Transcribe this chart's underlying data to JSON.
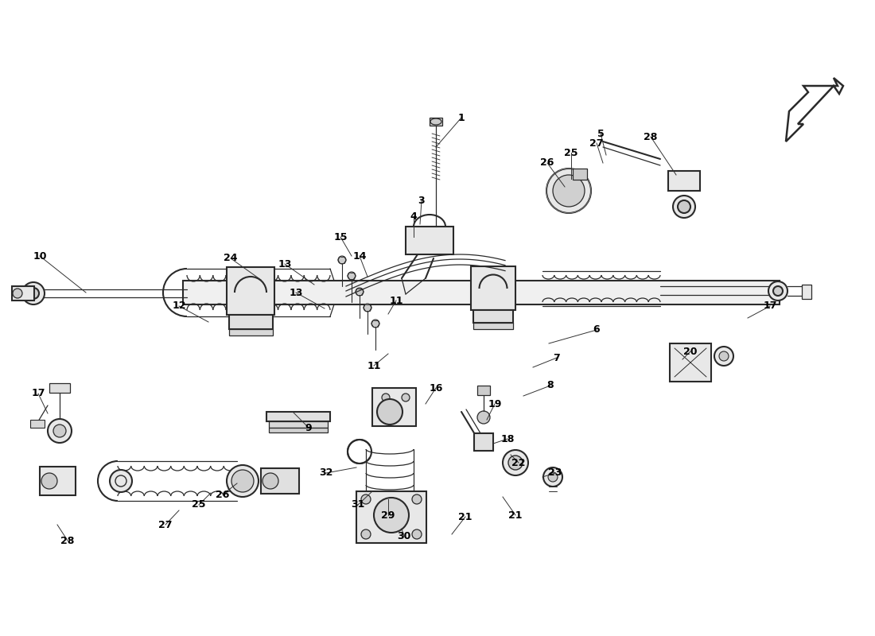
{
  "bg_color": "#ffffff",
  "line_color": "#2a2a2a",
  "lw_main": 1.5,
  "lw_thin": 0.9,
  "lw_label": 0.7,
  "fig_width": 11.0,
  "fig_height": 8.0,
  "dpi": 100,
  "labels": [
    [
      "1",
      580,
      148
    ],
    [
      "3",
      530,
      255
    ],
    [
      "4",
      523,
      275
    ],
    [
      "5",
      755,
      170
    ],
    [
      "6",
      748,
      418
    ],
    [
      "7",
      700,
      453
    ],
    [
      "8",
      692,
      488
    ],
    [
      "9",
      388,
      540
    ],
    [
      "10",
      52,
      325
    ],
    [
      "11",
      498,
      382
    ],
    [
      "11",
      472,
      462
    ],
    [
      "12",
      228,
      388
    ],
    [
      "13",
      358,
      335
    ],
    [
      "13",
      373,
      370
    ],
    [
      "14",
      452,
      325
    ],
    [
      "15",
      428,
      302
    ],
    [
      "16",
      548,
      492
    ],
    [
      "17",
      52,
      498
    ],
    [
      "17",
      968,
      388
    ],
    [
      "18",
      638,
      555
    ],
    [
      "19",
      622,
      512
    ],
    [
      "20",
      868,
      445
    ],
    [
      "21",
      585,
      652
    ],
    [
      "21",
      648,
      648
    ],
    [
      "22",
      652,
      585
    ],
    [
      "23",
      698,
      598
    ],
    [
      "24",
      292,
      328
    ],
    [
      "25",
      718,
      195
    ],
    [
      "25",
      252,
      638
    ],
    [
      "26",
      688,
      208
    ],
    [
      "26",
      282,
      625
    ],
    [
      "27",
      752,
      182
    ],
    [
      "27",
      210,
      662
    ],
    [
      "28",
      818,
      175
    ],
    [
      "28",
      88,
      682
    ],
    [
      "29",
      488,
      652
    ],
    [
      "30",
      508,
      678
    ],
    [
      "31",
      452,
      638
    ],
    [
      "32",
      412,
      598
    ]
  ]
}
